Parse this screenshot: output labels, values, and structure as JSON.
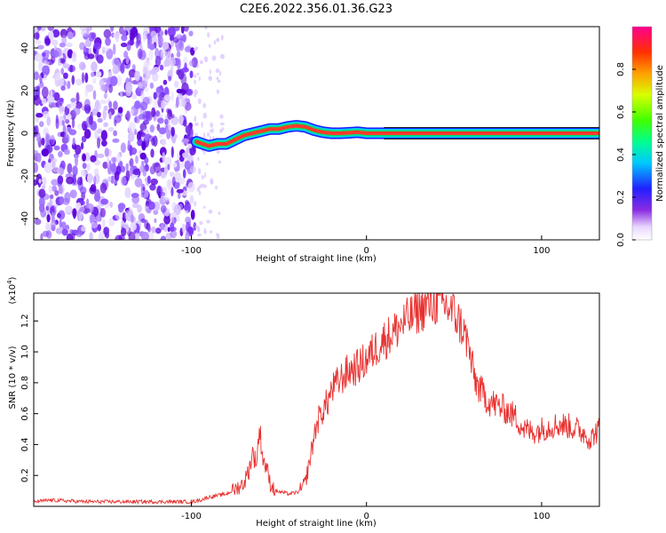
{
  "title": "C2E6.2022.356.01.36.G23",
  "chart_data": [
    {
      "type": "heatmap",
      "xlabel": "Height of straight line (km)",
      "ylabel": "Frequency (Hz)",
      "xlim": [
        -190,
        133
      ],
      "ylim": [
        -50,
        50
      ],
      "xticks": [
        "-100",
        "0",
        "100"
      ],
      "xtick_values": [
        -100,
        0,
        100
      ],
      "yticks": [
        "-40",
        "-20",
        "0",
        "20",
        "40"
      ],
      "ytick_values": [
        -40,
        -20,
        0,
        20,
        40
      ],
      "colorbar": {
        "label": "Normalized spectral amplitude",
        "ticks": [
          "0.0",
          "0.2",
          "0.4",
          "0.6",
          "0.8"
        ],
        "tick_values": [
          0.0,
          0.2,
          0.4,
          0.6,
          0.8
        ],
        "range": [
          0,
          1
        ]
      },
      "noise_band_xmax": -98,
      "sparse_region": [
        -98,
        -82
      ],
      "tone": {
        "x": [
          -97,
          -90,
          -85,
          -80,
          -75,
          -70,
          -65,
          -60,
          -55,
          -50,
          -45,
          -40,
          -35,
          -30,
          -25,
          -20,
          -15,
          -10,
          -5,
          0,
          5,
          10,
          133
        ],
        "y": [
          -4,
          -6,
          -5,
          -5,
          -3,
          -1,
          0,
          1,
          2,
          2,
          3,
          3.5,
          3,
          1.5,
          0.5,
          0,
          0,
          0.2,
          0.5,
          0,
          0,
          0,
          0
        ]
      },
      "grid": false
    },
    {
      "type": "line",
      "xlabel": "Height of straight line (km)",
      "ylabel": "SNR (10 * v/v)",
      "ymultiplier": "(x10",
      "ymultiplier_exp": "4",
      "ymultiplier_close": ")",
      "xlim": [
        -190,
        133
      ],
      "ylim": [
        0,
        1.38
      ],
      "xticks": [
        "-100",
        "0",
        "100"
      ],
      "xtick_values": [
        -100,
        0,
        100
      ],
      "yticks": [
        "0.2",
        "0.4",
        "0.6",
        "0.8",
        "1.0",
        "1.2"
      ],
      "ytick_values": [
        0.2,
        0.4,
        0.6,
        0.8,
        1.0,
        1.2
      ],
      "color": "#e8312f",
      "series": [
        {
          "x": [
            -190,
            -180,
            -160,
            -140,
            -120,
            -100,
            -95,
            -90,
            -85,
            -80,
            -75,
            -70,
            -67,
            -65,
            -63,
            -61,
            -59,
            -57,
            -55,
            -52,
            -48,
            -44,
            -40,
            -38,
            -35,
            -32,
            -30,
            -28,
            -25,
            -22,
            -20,
            -15,
            -10,
            -5,
            0,
            5,
            10,
            15,
            20,
            25,
            30,
            35,
            40,
            45,
            50,
            52,
            55,
            58,
            60,
            62,
            65,
            70,
            75,
            80,
            85,
            90,
            95,
            100,
            105,
            110,
            115,
            120,
            125,
            128,
            130,
            133
          ],
          "y": [
            0.03,
            0.04,
            0.03,
            0.03,
            0.03,
            0.03,
            0.04,
            0.06,
            0.07,
            0.08,
            0.11,
            0.15,
            0.24,
            0.35,
            0.28,
            0.5,
            0.3,
            0.25,
            0.15,
            0.1,
            0.09,
            0.08,
            0.09,
            0.1,
            0.15,
            0.32,
            0.45,
            0.55,
            0.62,
            0.68,
            0.75,
            0.82,
            0.88,
            0.9,
            0.95,
            1.02,
            1.08,
            1.12,
            1.18,
            1.22,
            1.27,
            1.3,
            1.32,
            1.3,
            1.25,
            1.21,
            1.15,
            1.05,
            0.92,
            0.82,
            0.75,
            0.68,
            0.65,
            0.62,
            0.58,
            0.5,
            0.48,
            0.5,
            0.52,
            0.53,
            0.52,
            0.5,
            0.47,
            0.43,
            0.47,
            0.5
          ]
        }
      ],
      "grid": false
    }
  ]
}
